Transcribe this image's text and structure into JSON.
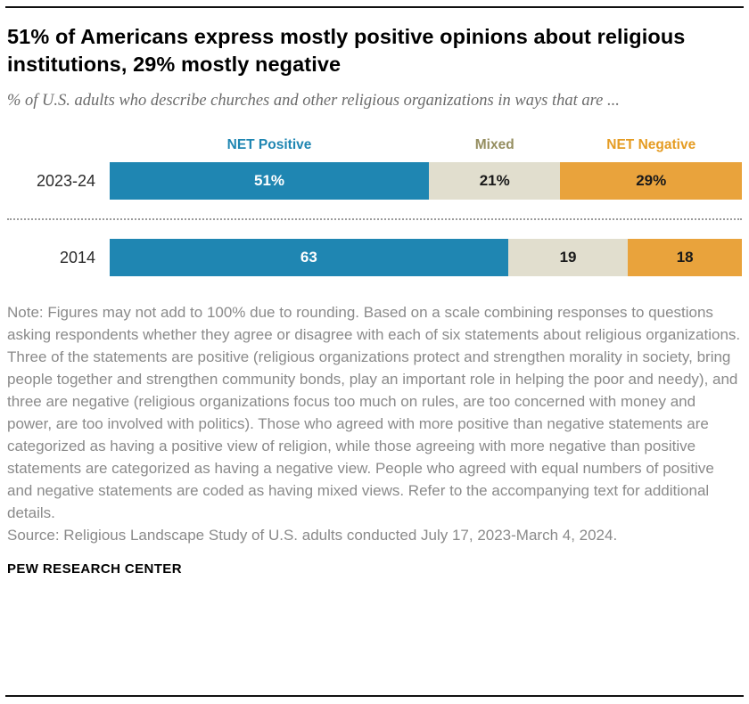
{
  "header": {
    "title": "51% of Americans express mostly positive opinions about religious institutions, 29% mostly negative",
    "subtitle": "% of U.S. adults who describe churches and other religious organizations in ways that are ..."
  },
  "chart_data": {
    "type": "bar",
    "orientation": "horizontal-stacked",
    "xlim": [
      0,
      100
    ],
    "legend_position": "top-inline-headers",
    "series": [
      {
        "name": "NET Positive",
        "color": "#1f86b2",
        "header_color": "#1f86b2"
      },
      {
        "name": "Mixed",
        "color": "#e1dece",
        "header_color": "#958e60"
      },
      {
        "name": "NET Negative",
        "color": "#e9a33c",
        "header_color": "#e59c23"
      }
    ],
    "rows": [
      {
        "label": "2023-24",
        "segments": [
          {
            "series": "NET Positive",
            "value": 51,
            "display": "51%",
            "text_color": "#ffffff"
          },
          {
            "series": "Mixed",
            "value": 21,
            "display": "21%",
            "text_color": "#1a1a1a"
          },
          {
            "series": "NET Negative",
            "value": 29,
            "display": "29%",
            "text_color": "#1a1a1a"
          }
        ]
      },
      {
        "label": "2014",
        "segments": [
          {
            "series": "NET Positive",
            "value": 63,
            "display": "63",
            "text_color": "#ffffff"
          },
          {
            "series": "Mixed",
            "value": 19,
            "display": "19",
            "text_color": "#1a1a1a"
          },
          {
            "series": "NET Negative",
            "value": 18,
            "display": "18",
            "text_color": "#1a1a1a"
          }
        ]
      }
    ]
  },
  "footer": {
    "note": "Note: Figures may not add to 100% due to rounding. Based on a scale combining responses to questions asking respondents whether they agree or disagree with each of six statements about religious organizations. Three of the statements are positive (religious organizations protect and strengthen morality in society, bring people together and strengthen community bonds, play an important role in helping the poor and needy), and three are negative (religious organizations focus too much on rules, are too concerned with money and power, are too involved with politics). Those who agreed with more positive than negative statements are categorized as having a positive view of religion, while those agreeing with more negative than positive statements are categorized as having a negative view. People who agreed with equal numbers of positive and negative statements are coded as having mixed views. Refer to the accompanying text for additional details.",
    "source": "Source: Religious Landscape Study of U.S. adults conducted July 17, 2023-March 4, 2024.",
    "brand": "PEW RESEARCH CENTER"
  }
}
